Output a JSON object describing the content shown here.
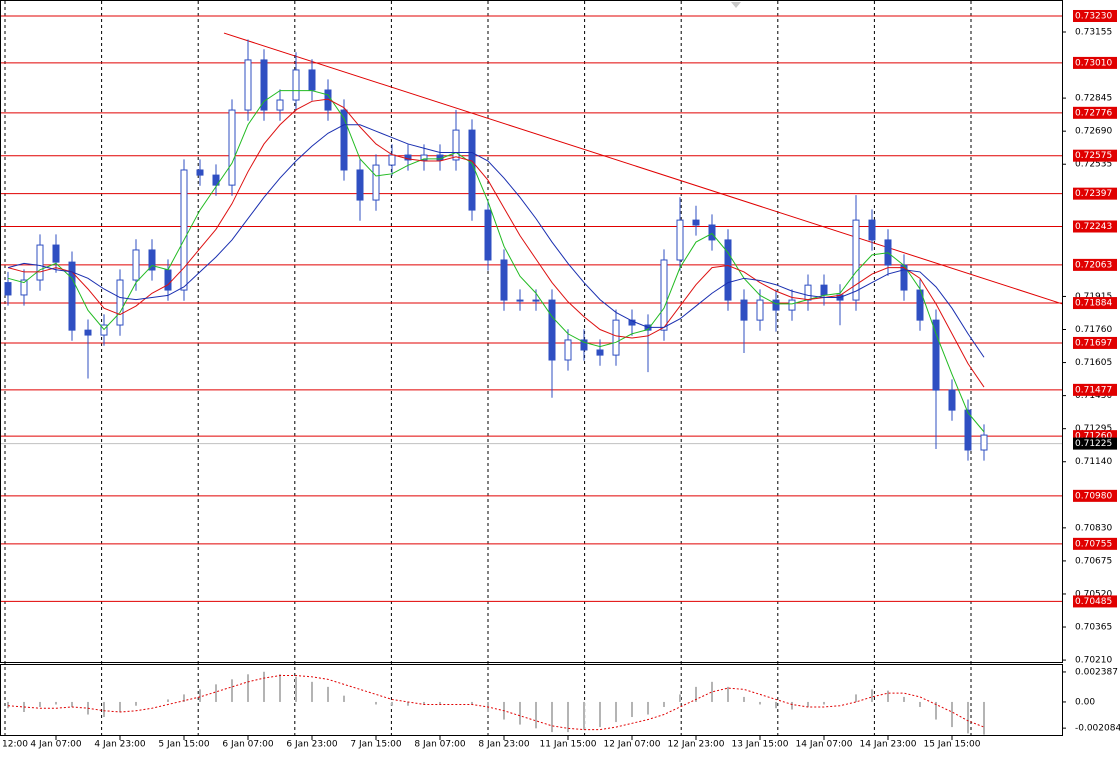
{
  "chart_data": {
    "type": "candlestick",
    "xlim": [
      -0.5,
      65.875
    ],
    "ylim": [
      0.70201,
      0.73305
    ],
    "xticks": [
      {
        "value": -1,
        "label": "12:00"
      },
      {
        "value": 3,
        "label": "4 Jan 07:00"
      },
      {
        "value": 7,
        "label": "4 Jan 23:00"
      },
      {
        "value": 11,
        "label": "5 Jan 15:00"
      },
      {
        "value": 15,
        "label": "6 Jan 07:00"
      },
      {
        "value": 19,
        "label": "6 Jan 23:00"
      },
      {
        "value": 23,
        "label": "7 Jan 15:00"
      },
      {
        "value": 27,
        "label": "8 Jan 07:00"
      },
      {
        "value": 31,
        "label": "8 Jan 23:00"
      },
      {
        "value": 35,
        "label": "11 Jan 15:00"
      },
      {
        "value": 39,
        "label": "12 Jan 07:00"
      },
      {
        "value": 43,
        "label": "12 Jan 23:00"
      },
      {
        "value": 47,
        "label": "13 Jan 15:00"
      },
      {
        "value": 51,
        "label": "14 Jan 07:00"
      },
      {
        "value": 55,
        "label": "14 Jan 23:00"
      },
      {
        "value": 59,
        "label": "15 Jan 15:00"
      }
    ],
    "yticks": [
      0.73155,
      0.72845,
      {
        "value": 0.7269,
        "label": "0.72690"
      },
      0.72535,
      0.71915,
      {
        "value": 0.7176,
        "label": "0.71760"
      },
      0.71605,
      {
        "value": 0.7145,
        "label": "0.71450"
      },
      0.71295,
      {
        "value": 0.7114,
        "label": "0.71140"
      },
      {
        "value": 0.7083,
        "label": "0.70830"
      },
      0.70675,
      {
        "value": 0.7052,
        "label": "0.70520"
      },
      0.70365,
      {
        "value": 0.7021,
        "label": "0.70210"
      }
    ],
    "color": "#2f4fc2",
    "open": [
      0.7198,
      0.71922,
      0.71992,
      0.72156,
      0.72076,
      0.71757,
      0.71734,
      0.71781,
      0.71992,
      0.72133,
      0.72039,
      0.71945,
      0.72508,
      0.72484,
      0.72437,
      0.72789,
      0.73024,
      0.72789,
      0.72836,
      0.72977,
      0.72883,
      0.72789,
      0.72508,
      0.72367,
      0.72531,
      0.72578,
      0.72555,
      0.72578,
      0.72555,
      0.72695,
      0.7232,
      0.72086,
      0.71898,
      0.71898,
      0.71898,
      0.71617,
      0.71711,
      0.71664,
      0.7164,
      0.71804,
      0.71781,
      0.71757,
      0.72086,
      0.72273,
      0.7225,
      0.7218,
      0.71898,
      0.71804,
      0.71898,
      0.71851,
      0.71898,
      0.71968,
      0.71922,
      0.71898,
      0.72273,
      0.7218,
      0.72062,
      0.71945,
      0.71804,
      0.71476,
      0.71382,
      0.71195
    ],
    "high": [
      0.7203,
      0.72042,
      0.72206,
      0.72206,
      0.72126,
      0.71807,
      0.71831,
      0.72042,
      0.72183,
      0.72183,
      0.72089,
      0.72558,
      0.72558,
      0.72534,
      0.72839,
      0.7312,
      0.73074,
      0.72886,
      0.7306,
      0.73027,
      0.72933,
      0.72839,
      0.72558,
      0.72581,
      0.72628,
      0.72628,
      0.72628,
      0.72628,
      0.7279,
      0.72745,
      0.7237,
      0.72136,
      0.71948,
      0.71948,
      0.71948,
      0.71761,
      0.71761,
      0.71714,
      0.71854,
      0.71854,
      0.71831,
      0.72136,
      0.7238,
      0.7234,
      0.723,
      0.7223,
      0.71948,
      0.71948,
      0.71948,
      0.71948,
      0.72018,
      0.72018,
      0.71972,
      0.7239,
      0.72323,
      0.7223,
      0.72112,
      0.71995,
      0.71854,
      0.71526,
      0.71432,
      0.71315
    ],
    "low": [
      0.71872,
      0.71872,
      0.71942,
      0.72026,
      0.71707,
      0.7153,
      0.71684,
      0.71731,
      0.71942,
      0.71989,
      0.71895,
      0.71895,
      0.72434,
      0.72387,
      0.72387,
      0.72739,
      0.72739,
      0.72739,
      0.72786,
      0.72833,
      0.72739,
      0.72458,
      0.7227,
      0.72317,
      0.72481,
      0.72505,
      0.72505,
      0.72505,
      0.72505,
      0.7227,
      0.72036,
      0.71848,
      0.71848,
      0.71848,
      0.7144,
      0.71567,
      0.71614,
      0.7159,
      0.7159,
      0.71731,
      0.7156,
      0.71707,
      0.72036,
      0.722,
      0.7213,
      0.71848,
      0.7165,
      0.71754,
      0.7175,
      0.71801,
      0.71848,
      0.71872,
      0.7178,
      0.71848,
      0.7213,
      0.72012,
      0.71895,
      0.71754,
      0.712,
      0.71332,
      0.71145,
      0.71145
    ],
    "close": [
      0.71922,
      0.71992,
      0.72156,
      0.72076,
      0.71757,
      0.71734,
      0.71781,
      0.71992,
      0.72133,
      0.72039,
      0.71945,
      0.72508,
      0.72484,
      0.72437,
      0.72789,
      0.73024,
      0.72789,
      0.72836,
      0.72977,
      0.72883,
      0.72789,
      0.72508,
      0.72367,
      0.72531,
      0.72578,
      0.72555,
      0.72578,
      0.72555,
      0.72695,
      0.7232,
      0.72086,
      0.71898,
      0.71898,
      0.71898,
      0.71617,
      0.71711,
      0.71664,
      0.7164,
      0.71804,
      0.71781,
      0.71757,
      0.72086,
      0.72273,
      0.7225,
      0.7218,
      0.71898,
      0.71804,
      0.71898,
      0.71851,
      0.71898,
      0.71968,
      0.71922,
      0.71898,
      0.72273,
      0.7218,
      0.72062,
      0.71945,
      0.71804,
      0.71476,
      0.71382,
      0.71195,
      0.71265
    ],
    "moving_averages": [
      {
        "color": "#22bb22",
        "values": [
          0.72,
          0.7198,
          0.7204,
          0.7207,
          0.72,
          0.7185,
          0.7176,
          0.7184,
          0.7198,
          0.7206,
          0.7204,
          0.7218,
          0.7232,
          0.7243,
          0.7254,
          0.7272,
          0.7283,
          0.7288,
          0.7288,
          0.7288,
          0.7286,
          0.7275,
          0.7256,
          0.7248,
          0.7249,
          0.7253,
          0.7256,
          0.7256,
          0.7259,
          0.7254,
          0.7236,
          0.7215,
          0.7201,
          0.7193,
          0.7182,
          0.7174,
          0.717,
          0.7168,
          0.717,
          0.7174,
          0.7176,
          0.7186,
          0.7205,
          0.7217,
          0.7221,
          0.7212,
          0.72,
          0.7192,
          0.7188,
          0.7188,
          0.719,
          0.7192,
          0.7193,
          0.7203,
          0.7211,
          0.7212,
          0.7206,
          0.7195,
          0.7174,
          0.7155,
          0.7137,
          0.7128
        ]
      },
      {
        "color": "#dd1111",
        "values": [
          0.7205,
          0.7203,
          0.7203,
          0.7205,
          0.7203,
          0.7195,
          0.7186,
          0.7183,
          0.7187,
          0.7193,
          0.7197,
          0.7205,
          0.7214,
          0.7223,
          0.7235,
          0.725,
          0.7263,
          0.7272,
          0.7279,
          0.7283,
          0.7284,
          0.728,
          0.7271,
          0.7263,
          0.7258,
          0.7256,
          0.7255,
          0.7255,
          0.7257,
          0.7255,
          0.7246,
          0.7233,
          0.722,
          0.7209,
          0.7198,
          0.7189,
          0.7182,
          0.7176,
          0.7173,
          0.7172,
          0.7173,
          0.7177,
          0.7187,
          0.7197,
          0.7205,
          0.7206,
          0.7203,
          0.7198,
          0.7194,
          0.7191,
          0.719,
          0.7191,
          0.7192,
          0.7197,
          0.7202,
          0.7205,
          0.7205,
          0.72,
          0.7188,
          0.7174,
          0.716,
          0.7149
        ]
      },
      {
        "color": "#1a2fb0",
        "values": [
          0.7205,
          0.7207,
          0.7206,
          0.7204,
          0.7203,
          0.72,
          0.7195,
          0.7191,
          0.719,
          0.7191,
          0.7192,
          0.7196,
          0.7203,
          0.721,
          0.7218,
          0.7228,
          0.7238,
          0.7247,
          0.7255,
          0.7262,
          0.7268,
          0.7272,
          0.7272,
          0.7269,
          0.7266,
          0.7263,
          0.7261,
          0.7259,
          0.7259,
          0.7259,
          0.7255,
          0.7247,
          0.7238,
          0.7228,
          0.7217,
          0.7207,
          0.7198,
          0.719,
          0.7184,
          0.718,
          0.7177,
          0.7177,
          0.7181,
          0.7187,
          0.7193,
          0.7198,
          0.72,
          0.7199,
          0.7197,
          0.7194,
          0.7192,
          0.7191,
          0.7191,
          0.7194,
          0.7198,
          0.7202,
          0.7204,
          0.7203,
          0.7196,
          0.7186,
          0.7174,
          0.7163
        ]
      }
    ],
    "levels": {
      "color": "#e00000",
      "values": [
        0.7323,
        0.7301,
        0.72776,
        0.72575,
        0.72397,
        0.72243,
        0.72063,
        0.71884,
        0.71697,
        0.71477,
        0.7126,
        0.7098,
        0.70755,
        0.70485
      ],
      "value_labels": [
        "0.73230",
        "0.73010",
        "0.72776",
        "0.72575",
        "0.72397",
        "0.72243",
        "0.72063",
        "0.71884",
        "0.71697",
        "0.71477",
        "0.71260",
        "0.70980",
        "0.70755",
        "0.70485"
      ]
    },
    "trendline": {
      "color": "#e00000",
      "x": [
        13.5,
        65.9
      ],
      "values": [
        0.7315,
        0.7188
      ]
    },
    "current_price": 0.71225,
    "oscillator": {
      "ylim": [
        -0.00263,
        0.00294
      ],
      "yticks": [
        0.002387,
        {
          "value": 0,
          "label": "0.00"
        },
        -0.002084
      ],
      "color": "#b4b4b4",
      "signal_color": "#e00000",
      "values": [
        -0.0005,
        -0.0008,
        -0.0004,
        -0.0002,
        -0.0004,
        -0.001,
        -0.0012,
        -0.0008,
        -0.0003,
        0,
        0.0002,
        0.0006,
        0.001,
        0.0014,
        0.0018,
        0.0022,
        0.0024,
        0.0022,
        0.002,
        0.0016,
        0.0012,
        0.0005,
        0,
        -0.0002,
        -0.0003,
        -0.0003,
        -0.0002,
        -0.0002,
        0,
        -0.0002,
        -0.0008,
        -0.0014,
        -0.0018,
        -0.0021,
        -0.0024,
        -0.0024,
        -0.0022,
        -0.002,
        -0.0016,
        -0.0012,
        -0.001,
        -0.0004,
        0.0006,
        0.0012,
        0.0016,
        0.0012,
        0.0004,
        -0.0002,
        -0.0005,
        -0.0006,
        -0.0004,
        -0.0002,
        0,
        0.0006,
        0.001,
        0.0009,
        0.0004,
        -0.0004,
        -0.0014,
        -0.002,
        -0.0025,
        -0.0026
      ],
      "signal": [
        -0.0003,
        -0.0004,
        -0.0005,
        -0.0005,
        -0.0004,
        -0.0005,
        -0.0007,
        -0.0008,
        -0.0007,
        -0.0005,
        -0.0002,
        0.0001,
        0.0004,
        0.0008,
        0.0012,
        0.0016,
        0.0019,
        0.0021,
        0.0021,
        0.002,
        0.0018,
        0.0014,
        0.001,
        0.0006,
        0.0002,
        0,
        -0.0002,
        -0.0002,
        -0.0002,
        -0.0002,
        -0.0004,
        -0.0007,
        -0.0011,
        -0.0015,
        -0.0019,
        -0.0021,
        -0.0022,
        -0.0022,
        -0.002,
        -0.0017,
        -0.0014,
        -0.001,
        -0.0004,
        0.0002,
        0.0008,
        0.0011,
        0.001,
        0.0006,
        0.0002,
        -0.0002,
        -0.0004,
        -0.0004,
        -0.0003,
        0,
        0.0004,
        0.0007,
        0.0007,
        0.0004,
        -0.0002,
        -0.0008,
        -0.0015,
        -0.002
      ]
    }
  }
}
